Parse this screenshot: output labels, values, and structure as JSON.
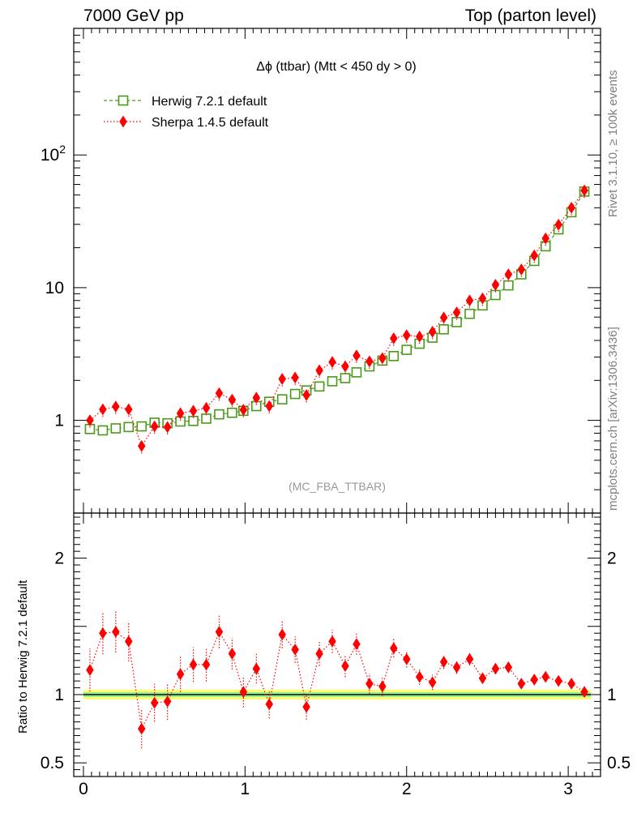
{
  "header": {
    "left": "7000 GeV pp",
    "right": "Top (parton level)"
  },
  "side_labels": {
    "top": "Rivet 3.1.10, ≥ 100k events",
    "bottom": "mcplots.cern.ch [arXiv:1306.3436]"
  },
  "chart_data": [
    {
      "type": "scatter",
      "title": "Δϕ (ttbar) (Mtt < 450 dy > 0)",
      "annotation": "(MC_FBA_TTBAR)",
      "xlabel": "",
      "ylabel": "",
      "xlim": [
        -0.06,
        3.2
      ],
      "ylim": [
        0.2,
        900
      ],
      "yscale": "log",
      "yticks": [
        1,
        10,
        100
      ],
      "ytick_labels": [
        "1",
        "10",
        "10^2"
      ],
      "grid": false,
      "legend_position": "top-left",
      "x": [
        0.04,
        0.12,
        0.2,
        0.28,
        0.36,
        0.44,
        0.52,
        0.6,
        0.68,
        0.76,
        0.84,
        0.92,
        0.99,
        1.07,
        1.15,
        1.23,
        1.31,
        1.38,
        1.46,
        1.54,
        1.62,
        1.69,
        1.77,
        1.85,
        1.92,
        2.0,
        2.08,
        2.16,
        2.23,
        2.31,
        2.39,
        2.47,
        2.55,
        2.63,
        2.71,
        2.79,
        2.86,
        2.94,
        3.02,
        3.1
      ],
      "series": [
        {
          "name": "Herwig 7.2.1 default",
          "color": "#4a9a1a",
          "marker": "open-square",
          "line": "dashed",
          "values": [
            0.86,
            0.84,
            0.87,
            0.89,
            0.9,
            0.96,
            0.95,
            0.98,
            0.99,
            1.03,
            1.11,
            1.14,
            1.18,
            1.28,
            1.38,
            1.44,
            1.58,
            1.68,
            1.8,
            1.97,
            2.08,
            2.3,
            2.55,
            2.82,
            3.05,
            3.4,
            3.78,
            4.2,
            4.85,
            5.5,
            6.35,
            7.35,
            8.8,
            10.4,
            12.6,
            15.9,
            20.5,
            27.5,
            37.0,
            53.0
          ]
        },
        {
          "name": "Sherpa 1.4.5 default",
          "color": "#ff0000",
          "marker": "filled-diamond",
          "line": "dotted",
          "values": [
            1.0,
            1.21,
            1.27,
            1.21,
            0.64,
            0.9,
            0.89,
            1.13,
            1.18,
            1.24,
            1.6,
            1.43,
            1.2,
            1.48,
            1.28,
            2.05,
            2.1,
            1.55,
            2.38,
            2.75,
            2.55,
            3.08,
            2.78,
            2.94,
            4.15,
            4.38,
            4.28,
            4.65,
            5.95,
            6.5,
            8.0,
            8.3,
            10.5,
            12.6,
            13.7,
            17.5,
            23.5,
            29.8,
            40.0,
            54.0
          ]
        }
      ]
    },
    {
      "type": "scatter",
      "ylabel": "Ratio to Herwig 7.2.1 default",
      "xlim": [
        -0.06,
        3.2
      ],
      "ylim": [
        0.4,
        2.33
      ],
      "yticks": [
        0.5,
        1,
        2
      ],
      "ytick_labels": [
        "0.5",
        "1",
        "2"
      ],
      "xticks": [
        0,
        1,
        2,
        3
      ],
      "xtick_labels": [
        "0",
        "1",
        "2",
        "3"
      ],
      "band_colors": [
        "#ffff66",
        "#99ee99"
      ],
      "reference_line": 1,
      "series": [
        {
          "name": "Sherpa 1.4.5 default",
          "color": "#ff0000",
          "values": [
            1.18,
            1.45,
            1.46,
            1.39,
            0.75,
            0.94,
            0.95,
            1.15,
            1.22,
            1.22,
            1.46,
            1.3,
            1.02,
            1.19,
            0.93,
            1.44,
            1.33,
            0.91,
            1.3,
            1.39,
            1.21,
            1.37,
            1.08,
            1.06,
            1.34,
            1.26,
            1.13,
            1.09,
            1.24,
            1.2,
            1.26,
            1.12,
            1.19,
            1.2,
            1.08,
            1.11,
            1.13,
            1.1,
            1.08,
            1.02
          ]
        }
      ]
    }
  ]
}
